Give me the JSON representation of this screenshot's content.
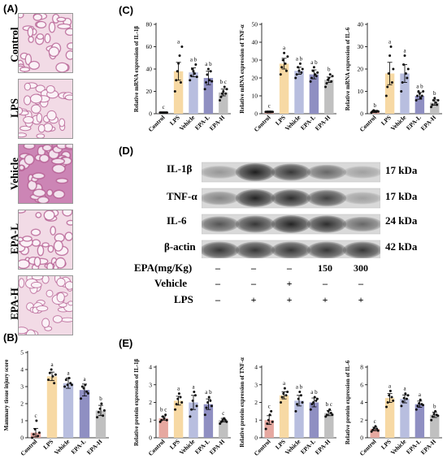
{
  "panels": {
    "A": "(A)",
    "B": "(B)",
    "C": "(C)",
    "D": "(D)",
    "E": "(E)"
  },
  "colors": {
    "control": "#e6a8a0",
    "lps": "#f7d9a4",
    "vehicle": "#b8bedf",
    "epa_l": "#8f8fc2",
    "epa_h": "#c0c0c0",
    "stain_bg": "#f2dbe6",
    "stain_dark": "#b1588e",
    "blot_band": "#1a1a1a"
  },
  "histology": {
    "rows": [
      "Control",
      "LPS",
      "Vehicle",
      "EPA-L",
      "EPA-H"
    ]
  },
  "chart_data": [
    {
      "id": "B",
      "type": "bar",
      "categories": [
        "Control",
        "LPS",
        "Vehicle",
        "EPA-L",
        "EPA-H"
      ],
      "values": [
        0.3,
        3.6,
        3.2,
        2.8,
        1.6
      ],
      "errors": [
        0.25,
        0.25,
        0.3,
        0.35,
        0.3
      ],
      "letters": [
        "c",
        "a",
        "a",
        "a",
        "b"
      ],
      "points": [
        [
          0,
          0.2,
          0.5,
          1.0,
          0.1,
          0.3
        ],
        [
          3.4,
          3.8,
          4.0,
          3.6,
          3.2,
          3.7
        ],
        [
          3.0,
          3.4,
          3.1,
          3.5,
          3.2,
          3.1
        ],
        [
          2.3,
          3.0,
          2.9,
          3.1,
          2.7,
          2.6
        ],
        [
          1.2,
          1.5,
          1.7,
          2.0,
          1.3,
          1.6
        ]
      ],
      "ylabel": "Mammary tissue injury score",
      "ylim": [
        0,
        5
      ],
      "yticks": [
        0,
        1,
        2,
        3,
        4,
        5
      ]
    },
    {
      "id": "C1",
      "type": "bar",
      "categories": [
        "Control",
        "LPS",
        "Vehicle",
        "EPA-L",
        "EPA-H"
      ],
      "values": [
        1,
        38,
        37,
        32,
        19
      ],
      "errors": [
        0.5,
        8,
        4,
        6,
        3
      ],
      "letters": [
        "c",
        "a",
        "a b",
        "a b",
        "b c"
      ],
      "points": [
        [
          1,
          1,
          1,
          1,
          1,
          1,
          1
        ],
        [
          20,
          30,
          38,
          45,
          52,
          28,
          60
        ],
        [
          30,
          34,
          40,
          38,
          36,
          44,
          33
        ],
        [
          22,
          28,
          35,
          40,
          30,
          38,
          29
        ],
        [
          12,
          15,
          18,
          20,
          24,
          18,
          22
        ]
      ],
      "ylabel": "Relative mRNA expression of IL-1β",
      "ylim": [
        0,
        80
      ],
      "yticks": [
        0,
        20,
        40,
        60,
        80
      ]
    },
    {
      "id": "C2",
      "type": "bar",
      "categories": [
        "Control",
        "LPS",
        "Vehicle",
        "EPA-L",
        "EPA-H"
      ],
      "values": [
        1,
        28,
        24,
        22,
        19
      ],
      "errors": [
        0.5,
        3,
        2,
        2.5,
        1.5
      ],
      "letters": [
        "c",
        "a",
        "a b",
        "a b",
        "b"
      ],
      "points": [
        [
          1,
          1,
          1,
          1,
          1,
          1,
          1
        ],
        [
          22,
          26,
          30,
          34,
          28,
          24,
          32
        ],
        [
          20,
          22,
          26,
          24,
          28,
          23,
          25
        ],
        [
          18,
          20,
          24,
          26,
          22,
          21,
          23
        ],
        [
          15,
          17,
          19,
          20,
          22,
          18,
          21
        ]
      ],
      "ylabel": "Relative mRNA expression of TNF-α",
      "ylim": [
        0,
        50
      ],
      "yticks": [
        0,
        10,
        20,
        30,
        40,
        50
      ]
    },
    {
      "id": "C3",
      "type": "bar",
      "categories": [
        "Control",
        "LPS",
        "Vehicle",
        "EPA-L",
        "EPA-H"
      ],
      "values": [
        1,
        18,
        18,
        8,
        5
      ],
      "errors": [
        0.5,
        5,
        4,
        1.5,
        1.2
      ],
      "letters": [
        "b",
        "a",
        "a",
        "a b",
        "b"
      ],
      "points": [
        [
          0.5,
          1,
          1.5,
          1,
          0.8,
          1.2,
          1
        ],
        [
          8,
          12,
          18,
          26,
          30,
          14,
          20
        ],
        [
          10,
          14,
          22,
          26,
          18,
          16,
          20
        ],
        [
          6,
          8,
          10,
          9,
          7,
          8,
          10
        ],
        [
          3,
          4,
          6,
          7,
          5,
          4,
          6
        ]
      ],
      "ylabel": "Relative mRNA expression of IL-6",
      "ylim": [
        0,
        40
      ],
      "yticks": [
        0,
        10,
        20,
        30,
        40
      ]
    },
    {
      "id": "E1",
      "type": "bar",
      "categories": [
        "Control",
        "LPS",
        "Vehicle",
        "EPA-L",
        "EPA-H"
      ],
      "values": [
        1.1,
        2.1,
        2.0,
        1.9,
        1.0
      ],
      "errors": [
        0.1,
        0.25,
        0.4,
        0.3,
        0.1
      ],
      "letters": [
        "b c",
        "a",
        "a",
        "a b",
        "c"
      ],
      "points": [
        [
          0.9,
          1.0,
          1.2,
          1.1,
          1.3,
          1.0
        ],
        [
          1.6,
          1.9,
          2.2,
          2.5,
          2.3,
          2.0
        ],
        [
          1.2,
          1.6,
          2.1,
          2.6,
          2.4,
          1.8
        ],
        [
          1.3,
          1.7,
          2.0,
          2.3,
          2.1,
          1.8
        ],
        [
          0.8,
          0.9,
          1.0,
          1.1,
          1.0,
          0.9
        ]
      ],
      "ylabel": "Relative protein expression of IL-1β",
      "ylim": [
        0,
        4
      ],
      "yticks": [
        0,
        1,
        2,
        3,
        4
      ]
    },
    {
      "id": "E2",
      "type": "bar",
      "categories": [
        "Control",
        "LPS",
        "Vehicle",
        "EPA-L",
        "EPA-H"
      ],
      "values": [
        1.0,
        2.4,
        2.1,
        2.0,
        1.4
      ],
      "errors": [
        0.25,
        0.2,
        0.3,
        0.25,
        0.15
      ],
      "letters": [
        "c",
        "a",
        "a b",
        "a b",
        "b c"
      ],
      "points": [
        [
          0.5,
          0.8,
          1.0,
          1.3,
          1.5,
          0.9
        ],
        [
          2.0,
          2.3,
          2.5,
          2.8,
          2.4,
          2.6
        ],
        [
          1.5,
          1.9,
          2.2,
          2.6,
          2.4,
          2.0
        ],
        [
          1.6,
          1.9,
          2.0,
          2.3,
          2.1,
          2.2
        ],
        [
          1.2,
          1.3,
          1.5,
          1.6,
          1.4,
          1.3
        ]
      ],
      "ylabel": "Relative protein expression of TNF-α",
      "ylim": [
        0,
        4
      ],
      "yticks": [
        0,
        1,
        2,
        3,
        4
      ]
    },
    {
      "id": "E3",
      "type": "bar",
      "categories": [
        "Control",
        "LPS",
        "Vehicle",
        "EPA-L",
        "EPA-H"
      ],
      "values": [
        1.0,
        4.5,
        4.4,
        3.8,
        2.6
      ],
      "errors": [
        0.2,
        0.5,
        0.45,
        0.35,
        0.3
      ],
      "letters": [
        "c",
        "a",
        "a",
        "a",
        "b"
      ],
      "points": [
        [
          0.7,
          0.9,
          1.1,
          1.3,
          1.0,
          0.8
        ],
        [
          3.5,
          4.0,
          4.8,
          5.3,
          4.6,
          4.2
        ],
        [
          3.6,
          4.1,
          4.5,
          5.0,
          4.4,
          4.8
        ],
        [
          3.2,
          3.6,
          3.9,
          4.3,
          3.8,
          3.7
        ],
        [
          2.0,
          2.4,
          2.7,
          3.0,
          2.6,
          2.5
        ]
      ],
      "ylabel": "Relative protein expression of IL-6",
      "ylim": [
        0,
        8
      ],
      "yticks": [
        0,
        2,
        4,
        6,
        8
      ]
    }
  ],
  "blot": {
    "proteins": [
      "IL-1β",
      "TNF-α",
      "IL-6",
      "β-actin"
    ],
    "kda": [
      "17 kDa",
      "17 kDa",
      "24 kDa",
      "42 kDa"
    ],
    "band_intensity": [
      [
        0.35,
        0.98,
        0.85,
        0.6,
        0.3
      ],
      [
        0.45,
        0.95,
        0.9,
        0.8,
        0.3
      ],
      [
        0.7,
        0.85,
        0.95,
        0.9,
        0.6
      ],
      [
        0.85,
        0.85,
        0.85,
        0.85,
        0.85
      ]
    ],
    "treatments": [
      {
        "label": "EPA(mg/Kg)",
        "values": [
          "–",
          "–",
          "–",
          "150",
          "300"
        ]
      },
      {
        "label": "Vehicle",
        "values": [
          "–",
          "–",
          "+",
          "–",
          "–"
        ]
      },
      {
        "label": "LPS",
        "values": [
          "–",
          "+",
          "+",
          "+",
          "+"
        ]
      }
    ]
  }
}
